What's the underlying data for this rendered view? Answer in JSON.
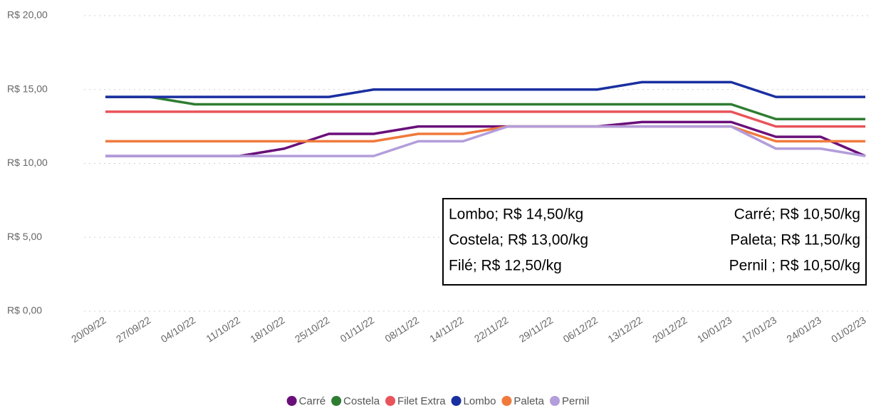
{
  "chart_data": {
    "type": "line",
    "categories": [
      "20/09/22",
      "27/09/22",
      "04/10/22",
      "11/10/22",
      "18/10/22",
      "25/10/22",
      "01/11/22",
      "08/11/22",
      "14/11/22",
      "22/11/22",
      "29/11/22",
      "06/12/22",
      "13/12/22",
      "20/12/22",
      "10/01/23",
      "17/01/23",
      "24/01/23",
      "01/02/23"
    ],
    "series": [
      {
        "name": "Carré",
        "color": "#6a0f7a",
        "values": [
          10.5,
          10.5,
          10.5,
          10.5,
          11,
          12,
          12,
          12.5,
          12.5,
          12.5,
          12.5,
          12.5,
          12.8,
          12.8,
          12.8,
          11.8,
          11.8,
          10.5
        ]
      },
      {
        "name": "Costela",
        "color": "#2e7d32",
        "values": [
          14.5,
          14.5,
          14,
          14,
          14,
          14,
          14,
          14,
          14,
          14,
          14,
          14,
          14,
          14,
          14,
          13,
          13,
          13
        ]
      },
      {
        "name": "Filet Extra",
        "color": "#e8545a",
        "values": [
          13.5,
          13.5,
          13.5,
          13.5,
          13.5,
          13.5,
          13.5,
          13.5,
          13.5,
          13.5,
          13.5,
          13.5,
          13.5,
          13.5,
          13.5,
          12.5,
          12.5,
          12.5
        ]
      },
      {
        "name": "Lombo",
        "color": "#1a2fa0",
        "values": [
          14.5,
          14.5,
          14.5,
          14.5,
          14.5,
          14.5,
          15,
          15,
          15,
          15,
          15,
          15,
          15.5,
          15.5,
          15.5,
          14.5,
          14.5,
          14.5
        ]
      },
      {
        "name": "Paleta",
        "color": "#f07a3c",
        "values": [
          11.5,
          11.5,
          11.5,
          11.5,
          11.5,
          11.5,
          11.5,
          12,
          12,
          12.5,
          12.5,
          12.5,
          12.5,
          12.5,
          12.5,
          11.5,
          11.5,
          11.5
        ]
      },
      {
        "name": "Pernil",
        "color": "#b39ddb",
        "values": [
          10.5,
          10.5,
          10.5,
          10.5,
          10.5,
          10.5,
          10.5,
          11.5,
          11.5,
          12.5,
          12.5,
          12.5,
          12.5,
          12.5,
          12.5,
          11,
          11,
          10.5
        ]
      }
    ],
    "ylim": [
      0,
      20
    ],
    "yticks": [
      {
        "value": 0,
        "label": "R$ 0,00"
      },
      {
        "value": 5,
        "label": "R$ 5,00"
      },
      {
        "value": 10,
        "label": "R$ 10,00"
      },
      {
        "value": 15,
        "label": "R$ 15,00"
      },
      {
        "value": 20,
        "label": "R$ 20,00"
      }
    ],
    "grid": true,
    "legend": "bottom",
    "annotations": {
      "left": [
        "Lombo; R$ 14,50/kg",
        "Costela; R$ 13,00/kg",
        "Filé; R$ 12,50/kg"
      ],
      "right": [
        "Carré; R$ 10,50/kg",
        "Paleta; R$ 11,50/kg",
        "Pernil ; R$ 10,50/kg"
      ]
    }
  }
}
